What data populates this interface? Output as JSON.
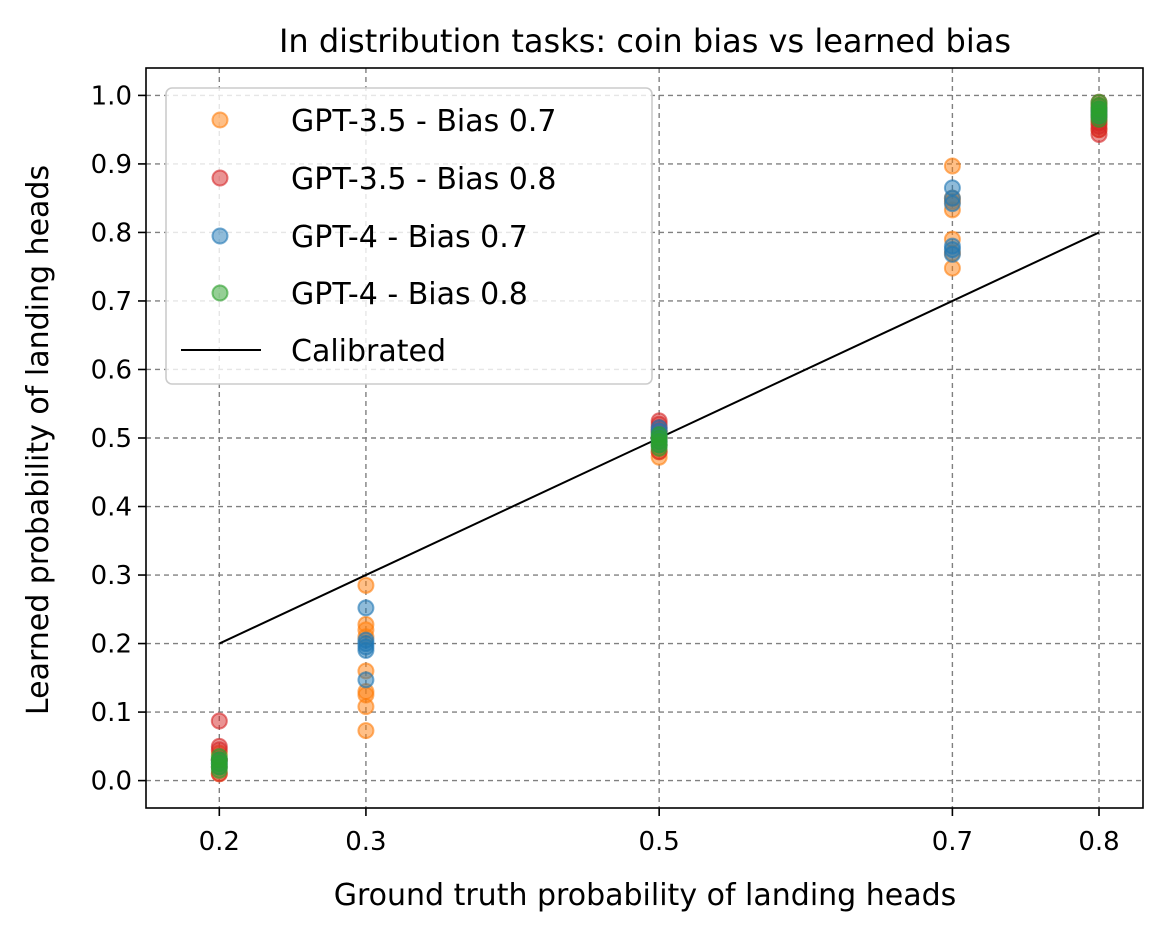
{
  "chart_data": {
    "type": "scatter",
    "title": "In distribution tasks: coin bias vs learned bias",
    "xlabel": "Ground truth probability of landing heads",
    "ylabel": "Learned probability of landing heads",
    "xlim": [
      0.15,
      0.83
    ],
    "ylim": [
      -0.04,
      1.04
    ],
    "xticks": [
      0.2,
      0.3,
      0.5,
      0.7,
      0.8
    ],
    "xtick_labels": [
      "0.2",
      "0.3",
      "0.5",
      "0.7",
      "0.8"
    ],
    "yticks": [
      0.0,
      0.1,
      0.2,
      0.3,
      0.4,
      0.5,
      0.6,
      0.7,
      0.8,
      0.9,
      1.0
    ],
    "ytick_labels": [
      "0.0",
      "0.1",
      "0.2",
      "0.3",
      "0.4",
      "0.5",
      "0.6",
      "0.7",
      "0.8",
      "0.9",
      "1.0"
    ],
    "grid": true,
    "legend_position": "top-left",
    "series": [
      {
        "name": "GPT-3.5 - Bias 0.7",
        "color": "#ff7f0e",
        "points": [
          [
            0.2,
            0.01
          ],
          [
            0.2,
            0.02
          ],
          [
            0.2,
            0.03
          ],
          [
            0.2,
            0.04
          ],
          [
            0.3,
            0.073
          ],
          [
            0.3,
            0.108
          ],
          [
            0.3,
            0.125
          ],
          [
            0.3,
            0.13
          ],
          [
            0.3,
            0.16
          ],
          [
            0.3,
            0.21
          ],
          [
            0.3,
            0.22
          ],
          [
            0.3,
            0.228
          ],
          [
            0.3,
            0.285
          ],
          [
            0.5,
            0.472
          ],
          [
            0.5,
            0.48
          ],
          [
            0.5,
            0.49
          ],
          [
            0.5,
            0.5
          ],
          [
            0.5,
            0.51
          ],
          [
            0.7,
            0.748
          ],
          [
            0.7,
            0.77
          ],
          [
            0.7,
            0.79
          ],
          [
            0.7,
            0.833
          ],
          [
            0.7,
            0.845
          ],
          [
            0.7,
            0.85
          ],
          [
            0.7,
            0.897
          ],
          [
            0.8,
            0.95
          ],
          [
            0.8,
            0.96
          ],
          [
            0.8,
            0.97
          ],
          [
            0.8,
            0.98
          ]
        ]
      },
      {
        "name": "GPT-3.5 - Bias 0.8",
        "color": "#d62728",
        "points": [
          [
            0.2,
            0.01
          ],
          [
            0.2,
            0.03
          ],
          [
            0.2,
            0.045
          ],
          [
            0.2,
            0.05
          ],
          [
            0.2,
            0.087
          ],
          [
            0.5,
            0.48
          ],
          [
            0.5,
            0.5
          ],
          [
            0.5,
            0.51
          ],
          [
            0.5,
            0.515
          ],
          [
            0.5,
            0.52
          ],
          [
            0.5,
            0.525
          ],
          [
            0.8,
            0.943
          ],
          [
            0.8,
            0.95
          ],
          [
            0.8,
            0.955
          ],
          [
            0.8,
            0.96
          ],
          [
            0.8,
            0.965
          ],
          [
            0.8,
            0.97
          ],
          [
            0.8,
            0.975
          ],
          [
            0.8,
            0.98
          ],
          [
            0.8,
            0.985
          ],
          [
            0.8,
            0.99
          ]
        ]
      },
      {
        "name": "GPT-4 - Bias 0.7",
        "color": "#1f77b4",
        "points": [
          [
            0.2,
            0.02
          ],
          [
            0.2,
            0.025
          ],
          [
            0.2,
            0.03
          ],
          [
            0.3,
            0.147
          ],
          [
            0.3,
            0.19
          ],
          [
            0.3,
            0.195
          ],
          [
            0.3,
            0.2
          ],
          [
            0.3,
            0.205
          ],
          [
            0.3,
            0.252
          ],
          [
            0.5,
            0.49
          ],
          [
            0.5,
            0.495
          ],
          [
            0.5,
            0.5
          ],
          [
            0.5,
            0.505
          ],
          [
            0.5,
            0.51
          ],
          [
            0.5,
            0.515
          ],
          [
            0.7,
            0.768
          ],
          [
            0.7,
            0.775
          ],
          [
            0.7,
            0.78
          ],
          [
            0.7,
            0.842
          ],
          [
            0.7,
            0.85
          ],
          [
            0.7,
            0.865
          ],
          [
            0.8,
            0.97
          ],
          [
            0.8,
            0.975
          ],
          [
            0.8,
            0.98
          ]
        ]
      },
      {
        "name": "GPT-4 - Bias 0.8",
        "color": "#2ca02c",
        "points": [
          [
            0.2,
            0.015
          ],
          [
            0.2,
            0.02
          ],
          [
            0.2,
            0.025
          ],
          [
            0.2,
            0.03
          ],
          [
            0.2,
            0.035
          ],
          [
            0.5,
            0.485
          ],
          [
            0.5,
            0.49
          ],
          [
            0.5,
            0.495
          ],
          [
            0.5,
            0.5
          ],
          [
            0.5,
            0.505
          ],
          [
            0.8,
            0.965
          ],
          [
            0.8,
            0.97
          ],
          [
            0.8,
            0.975
          ],
          [
            0.8,
            0.98
          ],
          [
            0.8,
            0.985
          ],
          [
            0.8,
            0.99
          ]
        ]
      }
    ],
    "reference_line": {
      "name": "Calibrated",
      "color": "#000000",
      "points": [
        [
          0.2,
          0.2
        ],
        [
          0.8,
          0.8
        ]
      ]
    }
  }
}
